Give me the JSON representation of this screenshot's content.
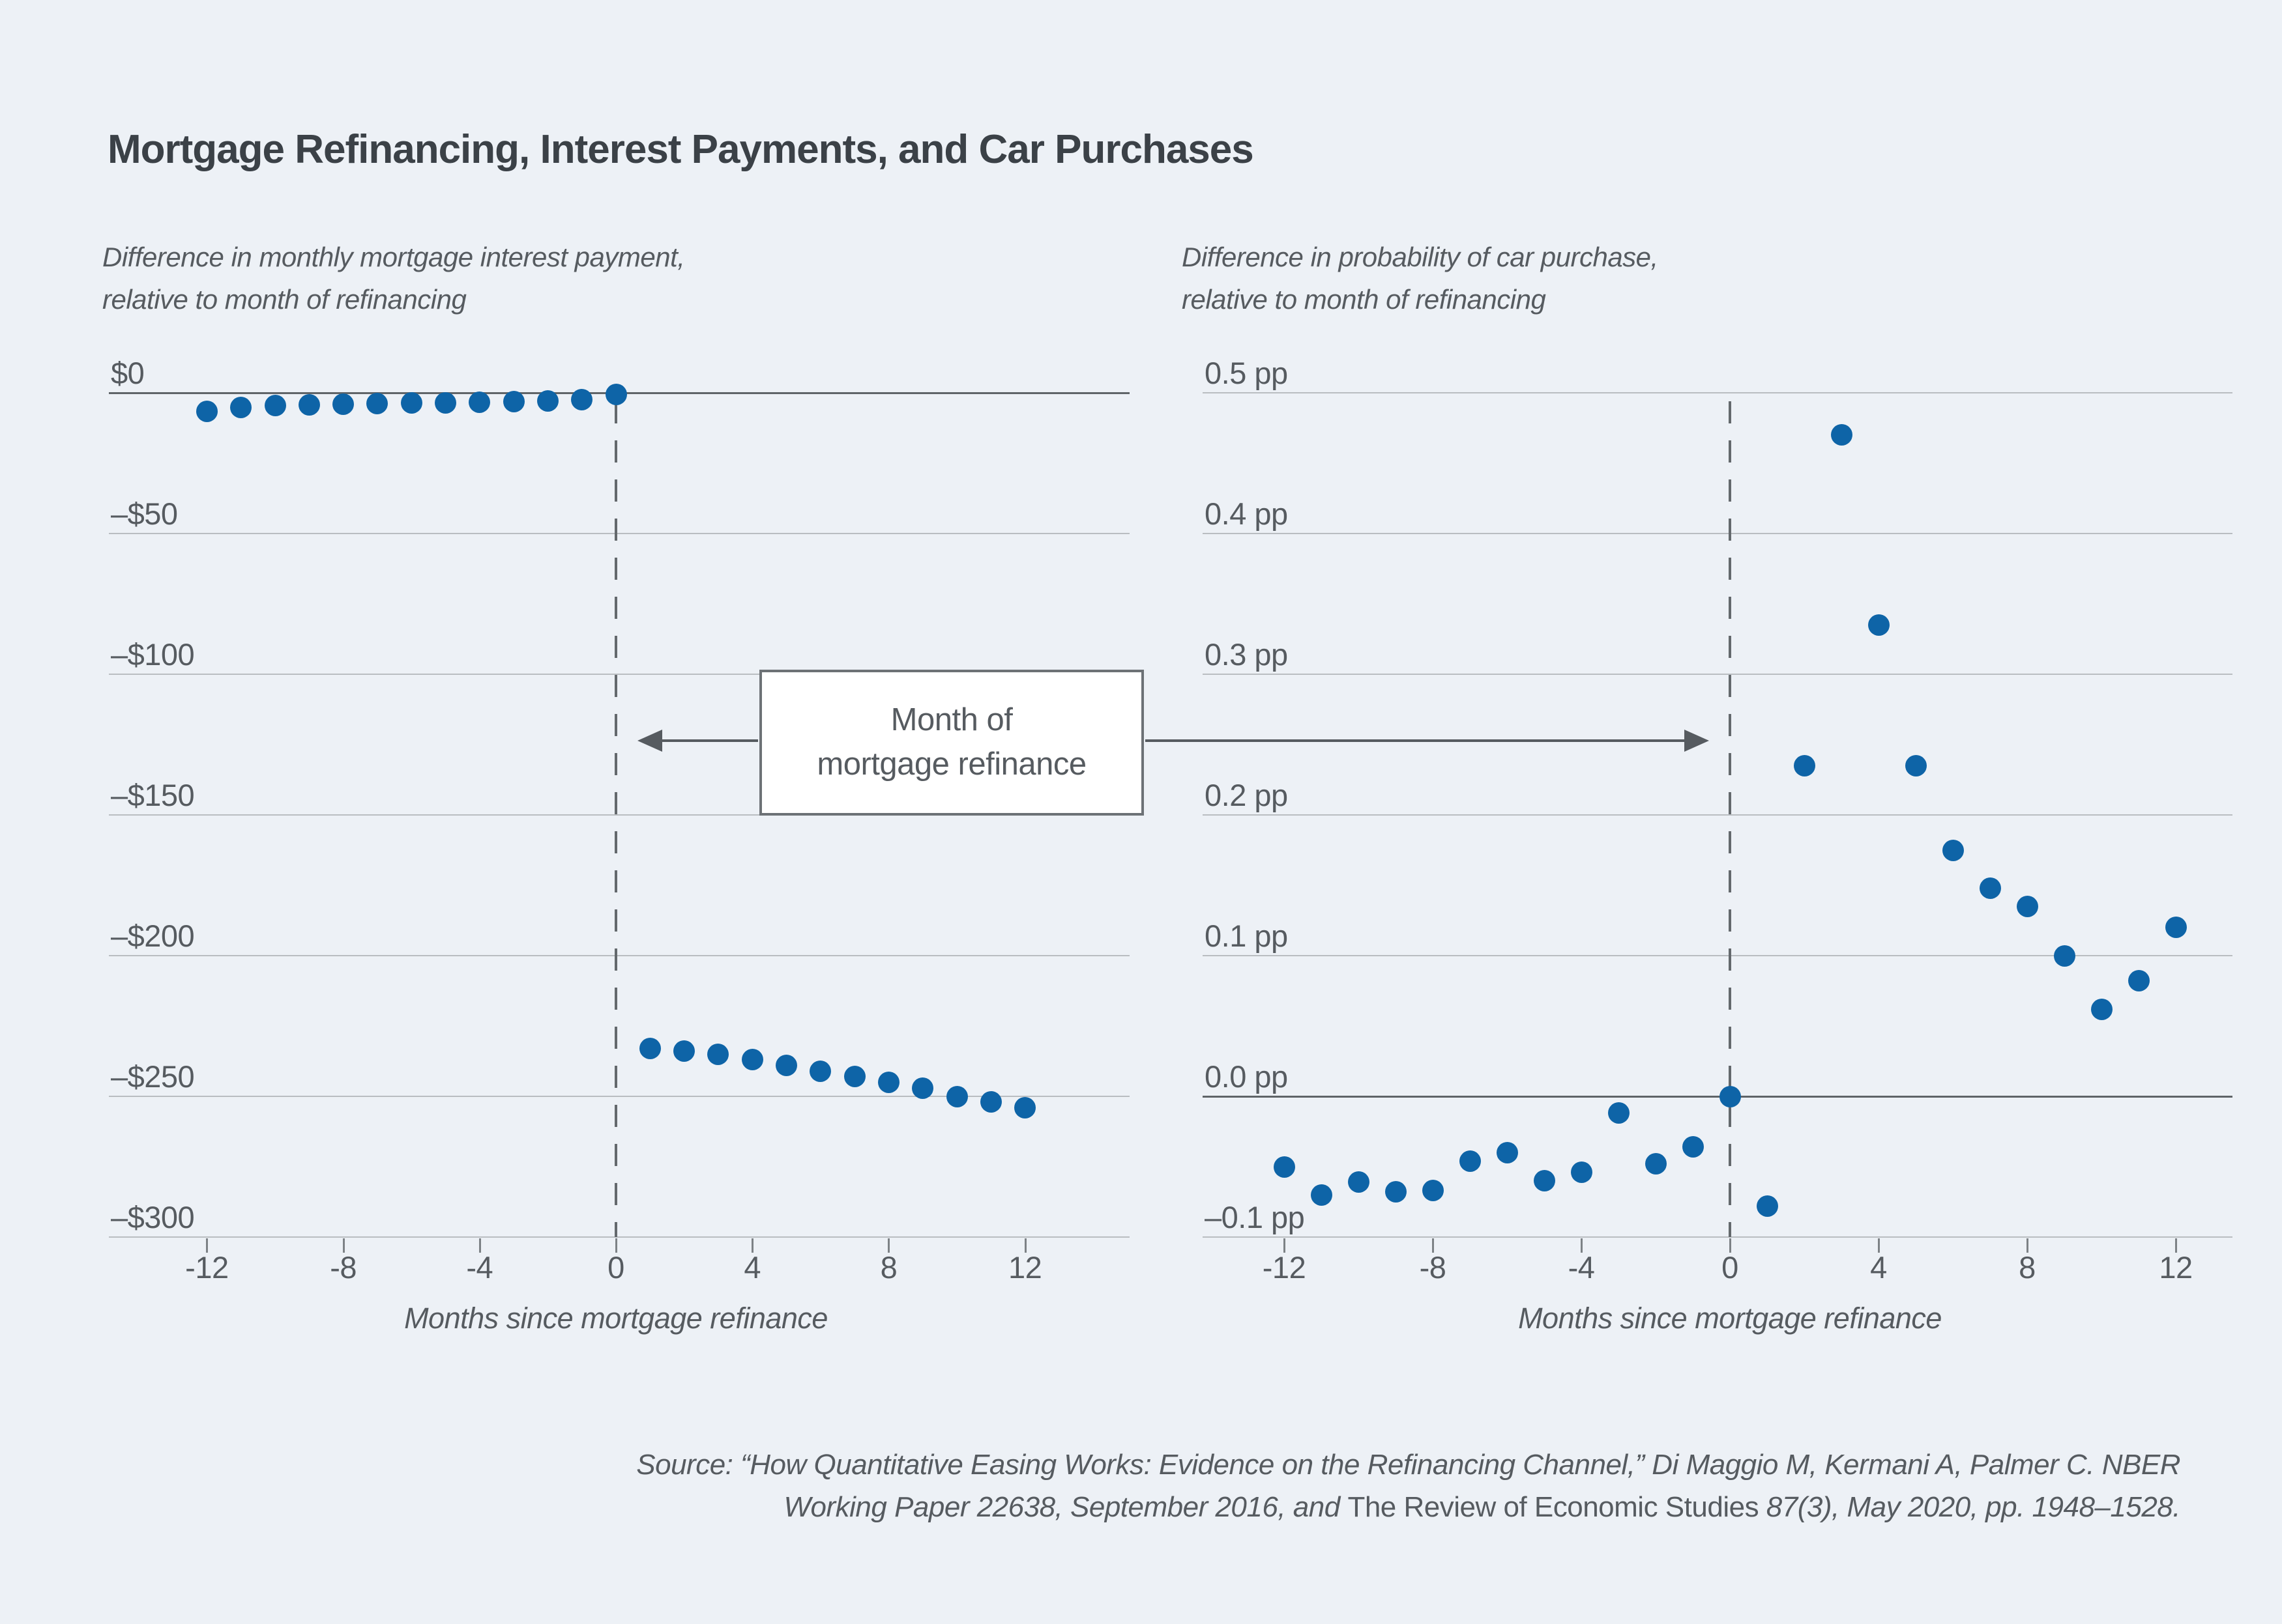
{
  "title": "Mortgage Refinancing, Interest Payments, and Car Purchases",
  "colors": {
    "background": "#edf1f6",
    "title_text": "#3b4147",
    "body_text": "#565b60",
    "gridline": "#b9bdc1",
    "zero_line": "#5f6468",
    "dashed_line": "#64696d",
    "tick": "#7d8286",
    "dot_blue": "#0e64a7",
    "annotation_border": "#6d7276",
    "annotation_bg": "#ffffff"
  },
  "annotation": {
    "lines": [
      "Month of",
      "mortgage refinance"
    ]
  },
  "panels": [
    {
      "id": "interest-payment",
      "subtitle_lines": [
        "Difference in monthly mortgage interest payment,",
        "relative to month of refinancing"
      ],
      "y_labels": [
        "$0",
        "–$50",
        "–$100",
        "–$150",
        "–$200",
        "–$250",
        "–$300"
      ],
      "x_tick_labels": [
        "-12",
        "-8",
        "-4",
        "0",
        "4",
        "8",
        "12"
      ],
      "x_axis_title": "Months since mortgage refinance",
      "chart_data": {
        "type": "scatter",
        "title": "Difference in monthly mortgage interest payment, relative to month of refinancing",
        "xlabel": "Months since mortgage refinance",
        "ylabel": "Difference in monthly mortgage interest payment ($)",
        "xlim": [
          -15,
          15
        ],
        "ylim": [
          -300,
          0
        ],
        "x_ticks": [
          -12,
          -8,
          -4,
          0,
          4,
          8,
          12
        ],
        "y_ticks": [
          0,
          -50,
          -100,
          -150,
          -200,
          -250,
          -300
        ],
        "grid": true,
        "x": [
          -12,
          -11,
          -10,
          -9,
          -8,
          -7,
          -6,
          -5,
          -4,
          -3,
          -2,
          -1,
          0,
          1,
          2,
          3,
          4,
          5,
          6,
          7,
          8,
          9,
          10,
          11,
          12
        ],
        "y": [
          -6.5,
          -5.2,
          -4.6,
          -4.2,
          -4.0,
          -3.8,
          -3.6,
          -3.5,
          -3.3,
          -3.1,
          -2.8,
          -2.4,
          -0.6,
          -233,
          -234,
          -235,
          -237,
          -239,
          -241,
          -243,
          -245,
          -247,
          -250,
          -252,
          -254
        ]
      }
    },
    {
      "id": "car-purchase",
      "subtitle_lines": [
        "Difference in probability of car purchase,",
        "relative to month of refinancing"
      ],
      "y_labels": [
        "0.5 pp",
        "0.4 pp",
        "0.3 pp",
        "0.2 pp",
        "0.1 pp",
        "0.0 pp",
        "–0.1 pp"
      ],
      "x_tick_labels": [
        "-12",
        "-8",
        "-4",
        "0",
        "4",
        "8",
        "12"
      ],
      "x_axis_title": "Months since mortgage refinance",
      "chart_data": {
        "type": "scatter",
        "title": "Difference in probability of car purchase, relative to month of refinancing",
        "xlabel": "Months since mortgage refinance",
        "ylabel": "Difference in probability of car purchase (percentage points)",
        "xlim": [
          -15,
          15
        ],
        "ylim": [
          -0.1,
          0.5
        ],
        "x_ticks": [
          -12,
          -8,
          -4,
          0,
          4,
          8,
          12
        ],
        "y_ticks": [
          0.5,
          0.4,
          0.3,
          0.2,
          0.1,
          0.0,
          -0.1
        ],
        "grid": true,
        "x": [
          -12,
          -11,
          -10,
          -9,
          -8,
          -7,
          -6,
          -5,
          -4,
          -3,
          -2,
          -1,
          0,
          1,
          2,
          3,
          4,
          5,
          6,
          7,
          8,
          9,
          10,
          11,
          12
        ],
        "y": [
          -0.05,
          -0.07,
          -0.061,
          -0.068,
          -0.067,
          -0.046,
          -0.04,
          -0.06,
          -0.054,
          -0.012,
          -0.048,
          -0.036,
          0.0,
          -0.078,
          0.235,
          0.47,
          0.335,
          0.235,
          0.175,
          0.148,
          0.135,
          0.1,
          0.062,
          0.082,
          0.12
        ]
      }
    }
  ],
  "source": {
    "line1": "Source: “How Quantitative Easing Works: Evidence on the Refinancing Channel,” Di Maggio M, Kermani A, Palmer C. NBER",
    "line2_italic_pre": "Working Paper 22638, September 2016, and ",
    "line2_upright": "The Review of Economic Studies",
    "line2_italic_post": " 87(3), May 2020, pp. 1948–1528."
  }
}
